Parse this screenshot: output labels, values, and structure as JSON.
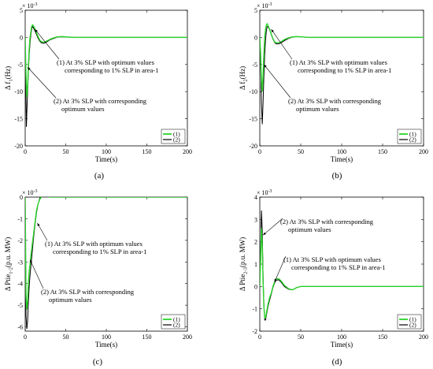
{
  "colors": {
    "series1": "#2bd42b",
    "series2": "#000000"
  },
  "chart_data": [
    {
      "type": "line",
      "panel_label": "(a)",
      "xlabel": "Time(s)",
      "ylabel": "Δ f1(Hz)",
      "ylabel_main": "Δ f",
      "ylabel_sub": "1",
      "ylabel_tail": "(Hz)",
      "exponent_label": "× 10-3",
      "exp_base": "× 10",
      "exp_pow": "-3",
      "xlim": [
        0,
        200
      ],
      "ylim": [
        -20,
        5
      ],
      "xticks": [
        0,
        50,
        100,
        150,
        200
      ],
      "yticks": [
        -20,
        -15,
        -10,
        -5,
        0,
        5
      ],
      "legend": [
        "(1)",
        "(2)"
      ],
      "legend_position": "bottom-right",
      "annotations": [
        {
          "lines": [
            "(1) At 3% SLP with optimum values",
            "corresponding to 1% SLP in area-1"
          ],
          "target": [
            12,
            1.5
          ]
        },
        {
          "lines": [
            "(2) At 3% SLP with corresponding",
            "optimum values"
          ],
          "target": [
            3,
            -5.5
          ]
        }
      ],
      "series": [
        {
          "name": "(1)",
          "x": [
            0,
            1,
            2,
            3,
            4,
            5,
            6,
            7,
            8,
            9,
            10,
            12,
            14,
            16,
            18,
            20,
            23,
            26,
            30,
            35,
            40,
            45,
            50,
            60,
            70,
            80,
            100,
            200
          ],
          "y": [
            0,
            -7,
            -11,
            -9,
            -5,
            -2,
            0,
            1,
            2,
            2.3,
            2.2,
            1.6,
            0.8,
            0.1,
            -0.5,
            -0.8,
            -0.9,
            -0.7,
            -0.4,
            -0.1,
            0.1,
            0.15,
            0.1,
            0,
            0,
            0,
            0,
            0
          ]
        },
        {
          "name": "(2)",
          "x": [
            0,
            1,
            1.5,
            2,
            3,
            4,
            5,
            6,
            7,
            8,
            9,
            10,
            12,
            14,
            16,
            18,
            20,
            23,
            26,
            30,
            35,
            40,
            45,
            50,
            60,
            70,
            80,
            100,
            200
          ],
          "y": [
            0,
            -12,
            -16.5,
            -14,
            -10,
            -6,
            -3,
            -1,
            0.5,
            1.5,
            2,
            1.8,
            1.2,
            0.5,
            -0.2,
            -0.7,
            -1,
            -1.1,
            -0.9,
            -0.5,
            -0.2,
            0.05,
            0.1,
            0.05,
            0,
            0,
            0,
            0,
            0
          ]
        }
      ]
    },
    {
      "type": "line",
      "panel_label": "(b)",
      "xlabel": "Time(s)",
      "ylabel": "Δ f2(Hz)",
      "ylabel_main": "Δ f",
      "ylabel_sub": "2",
      "ylabel_tail": "(Hz)",
      "exponent_label": "× 10-3",
      "exp_base": "× 10",
      "exp_pow": "-3",
      "xlim": [
        0,
        200
      ],
      "ylim": [
        -20,
        5
      ],
      "xticks": [
        0,
        50,
        100,
        150,
        200
      ],
      "yticks": [
        -20,
        -15,
        -10,
        -5,
        0,
        5
      ],
      "legend": [
        "(1)",
        "(2)"
      ],
      "legend_position": "bottom-right",
      "annotations": [
        {
          "lines": [
            "(1) At 3% SLP with optimum values",
            "corresponding to 1% SLP in area-1"
          ],
          "target": [
            14,
            1.5
          ]
        },
        {
          "lines": [
            "(2) At 3% SLP with corresponding",
            "optimum values"
          ],
          "target": [
            5,
            -5
          ]
        }
      ],
      "series": [
        {
          "name": "(1)",
          "x": [
            0,
            1,
            2,
            3,
            4,
            5,
            6,
            7,
            8,
            9,
            10,
            12,
            14,
            16,
            18,
            20,
            23,
            26,
            30,
            35,
            40,
            45,
            50,
            60,
            70,
            80,
            100,
            200
          ],
          "y": [
            0,
            -3,
            -8,
            -10,
            -7,
            -3,
            0,
            1.5,
            2.3,
            2.5,
            2.2,
            1.5,
            0.6,
            -0.2,
            -0.8,
            -1,
            -1,
            -0.8,
            -0.4,
            -0.1,
            0.1,
            0.15,
            0.1,
            0,
            0,
            0,
            0,
            0
          ]
        },
        {
          "name": "(2)",
          "x": [
            0,
            1,
            2,
            3,
            4,
            5,
            6,
            7,
            8,
            9,
            10,
            12,
            14,
            16,
            18,
            20,
            23,
            26,
            30,
            35,
            40,
            45,
            50,
            60,
            70,
            80,
            100,
            200
          ],
          "y": [
            0,
            -4,
            -12,
            -16,
            -12,
            -7,
            -3,
            -0.5,
            1.2,
            2,
            2,
            1.4,
            0.5,
            -0.3,
            -0.9,
            -1.2,
            -1.2,
            -1,
            -0.6,
            -0.2,
            0.05,
            0.15,
            0.1,
            0,
            0,
            0,
            0,
            0
          ]
        }
      ]
    },
    {
      "type": "line",
      "panel_label": "(c)",
      "xlabel": "Time(s)",
      "ylabel": "Δ Ptie1-2(p.u. MW)",
      "ylabel_main": "Δ Ptie",
      "ylabel_sub": "1-2",
      "ylabel_tail": "(p.u. MW)",
      "exponent_label": "× 10-3",
      "exp_base": "× 10",
      "exp_pow": "-3",
      "xlim": [
        0,
        200
      ],
      "ylim": [
        -6.2,
        0
      ],
      "xticks": [
        0,
        50,
        100,
        150,
        200
      ],
      "yticks": [
        -6,
        -5,
        -4,
        -3,
        -2,
        -1,
        0
      ],
      "legend": [
        "(1)",
        "(2)"
      ],
      "legend_position": "bottom-right",
      "annotations": [
        {
          "lines": [
            "(1) At 3% SLP with optimum values",
            "corresponding to 1% SLP in area-1"
          ],
          "target": [
            15,
            -1.2
          ]
        },
        {
          "lines": [
            "(2) At 3% SLP with corresponding",
            "optimum values"
          ],
          "target": [
            6,
            -2.9
          ]
        }
      ],
      "series": [
        {
          "name": "(1)",
          "x": [
            0,
            1,
            2,
            3,
            4,
            5,
            6,
            7,
            8,
            10,
            12,
            14,
            16,
            18,
            20,
            22,
            25,
            30,
            35,
            40,
            50,
            60,
            80,
            100,
            200
          ],
          "y": [
            0,
            -4.5,
            -5.2,
            -4.8,
            -3.9,
            -3.4,
            -3.1,
            -2.7,
            -2.4,
            -1.8,
            -1.2,
            -0.6,
            -0.3,
            -0.1,
            0,
            0.05,
            0.05,
            0,
            0,
            0,
            0,
            0,
            0,
            0,
            0
          ]
        },
        {
          "name": "(2)",
          "x": [
            0,
            1,
            2,
            3,
            4,
            5,
            6,
            7,
            8,
            10,
            12,
            14,
            16,
            18,
            20,
            22,
            25,
            30,
            35,
            40,
            50,
            60,
            80,
            100,
            200
          ],
          "y": [
            0,
            -5.5,
            -6.1,
            -5.7,
            -4.8,
            -4.1,
            -3.6,
            -3.2,
            -2.8,
            -2.0,
            -1.3,
            -0.7,
            -0.3,
            -0.05,
            0.05,
            0.08,
            0.05,
            0,
            0,
            0,
            0,
            0,
            0,
            0,
            0
          ]
        }
      ]
    },
    {
      "type": "line",
      "panel_label": "(d)",
      "xlabel": "Time(s)",
      "ylabel": "Δ Ptie2-3(p.u. MW)",
      "ylabel_main": "Δ Ptie",
      "ylabel_sub": "2-3",
      "ylabel_tail": "(p.u. MW)",
      "exponent_label": "× 10-3",
      "exp_base": "× 10",
      "exp_pow": "-3",
      "xlim": [
        0,
        200
      ],
      "ylim": [
        -2,
        4
      ],
      "xticks": [
        0,
        50,
        100,
        150,
        200
      ],
      "yticks": [
        -2,
        -1,
        0,
        1,
        2,
        3,
        4
      ],
      "legend": [
        "(1)",
        "(2)"
      ],
      "legend_position": "bottom-right",
      "annotations": [
        {
          "lines": [
            "(2) At 3% SLP with corresponding",
            "optimum values"
          ],
          "target": [
            4,
            2.3
          ]
        },
        {
          "lines": [
            "(1) At 3% SLP with optimum values",
            "corresponding to 1% SLP in area-1"
          ],
          "target": [
            18,
            0.2
          ]
        }
      ],
      "series": [
        {
          "name": "(1)",
          "x": [
            0,
            1,
            2,
            3,
            4,
            5,
            6,
            7,
            8,
            9,
            10,
            12,
            14,
            16,
            18,
            20,
            23,
            26,
            30,
            35,
            40,
            45,
            50,
            60,
            70,
            80,
            100,
            200
          ],
          "y": [
            0,
            1.2,
            2.6,
            1.8,
            0.2,
            -0.9,
            -1.4,
            -1.4,
            -1.2,
            -1.0,
            -0.8,
            -0.5,
            -0.3,
            0,
            0.2,
            0.35,
            0.35,
            0.25,
            0.05,
            -0.1,
            -0.15,
            -0.05,
            0,
            0,
            0,
            0,
            0,
            0
          ]
        },
        {
          "name": "(2)",
          "x": [
            0,
            1,
            2,
            3,
            4,
            5,
            6,
            7,
            8,
            9,
            10,
            12,
            14,
            16,
            18,
            20,
            23,
            26,
            30,
            35,
            40,
            45,
            50,
            60,
            70,
            80,
            100,
            200
          ],
          "y": [
            0,
            1.5,
            3.4,
            2.5,
            0.5,
            -0.8,
            -1.5,
            -1.5,
            -1.3,
            -1.1,
            -0.9,
            -0.6,
            -0.35,
            -0.05,
            0.15,
            0.28,
            0.3,
            0.2,
            0,
            -0.12,
            -0.15,
            -0.05,
            0,
            0,
            0,
            0,
            0,
            0
          ]
        }
      ]
    }
  ]
}
